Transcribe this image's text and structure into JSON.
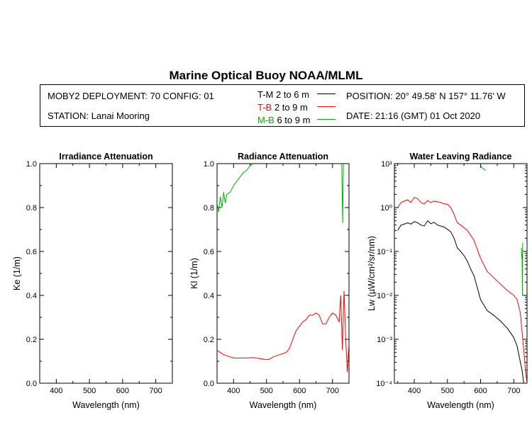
{
  "title": "Marine Optical Buoy NOAA/MLML",
  "info": {
    "deployment": "MOBY2 DEPLOYMENT: 70 CONFIG: 01",
    "station": "STATION: Lanai Mooring",
    "position": "POSITION: 20° 49.58' N   157° 11.76' W",
    "date": "DATE: 21:16 (GMT) 01 Oct 2020"
  },
  "legend": [
    {
      "code": "T-M",
      "range": "2 to 6  m",
      "color": "#000000"
    },
    {
      "code": "T-B",
      "range": "2 to 9  m",
      "color": "#ff0000"
    },
    {
      "code": "M-B",
      "range": "6 to 9  m",
      "color": "#00b000"
    }
  ],
  "chart_data": [
    {
      "type": "line",
      "title": "Irradiance Attenuation",
      "xlabel": "Wavelength (nm)",
      "ylabel": "Ke  (1/m)",
      "xlim": [
        350,
        750
      ],
      "ylim": [
        0,
        1.0
      ],
      "xticks": [
        "400",
        "500",
        "600",
        "700"
      ],
      "yticks": [
        "0.0",
        "0.2",
        "0.4",
        "0.6",
        "0.8",
        "1.0"
      ],
      "series": []
    },
    {
      "type": "line",
      "title": "Radiance Attenuation",
      "xlabel": "Wavelength (nm)",
      "ylabel": "Kl  (1/m)",
      "xlim": [
        350,
        750
      ],
      "ylim": [
        0,
        1.0
      ],
      "xticks": [
        "400",
        "500",
        "600",
        "700"
      ],
      "yticks": [
        "0.0",
        "0.2",
        "0.4",
        "0.6",
        "0.8",
        "1.0"
      ],
      "series": [
        {
          "color": "#ff0000",
          "x": [
            350,
            360,
            370,
            380,
            390,
            400,
            420,
            440,
            460,
            480,
            500,
            510,
            520,
            540,
            560,
            570,
            580,
            590,
            600,
            610,
            620,
            630,
            640,
            650,
            660,
            670,
            680,
            690,
            700,
            710,
            720,
            725,
            730,
            735,
            740,
            745,
            750
          ],
          "y": [
            0.15,
            0.14,
            0.13,
            0.125,
            0.12,
            0.115,
            0.115,
            0.115,
            0.117,
            0.112,
            0.107,
            0.11,
            0.12,
            0.13,
            0.14,
            0.16,
            0.2,
            0.24,
            0.26,
            0.28,
            0.29,
            0.31,
            0.31,
            0.32,
            0.31,
            0.27,
            0.27,
            0.3,
            0.32,
            0.31,
            0.28,
            0.4,
            0.15,
            0.42,
            0.2,
            0.05,
            0.18
          ]
        },
        {
          "color": "#00b000",
          "x": [
            350,
            355,
            360,
            365,
            370,
            375,
            380,
            390,
            400,
            410,
            420,
            430,
            440,
            450,
            460
          ],
          "y": [
            0.82,
            0.78,
            0.85,
            0.8,
            0.87,
            0.82,
            0.86,
            0.87,
            0.9,
            0.92,
            0.94,
            0.96,
            0.97,
            0.99,
            1.0
          ]
        },
        {
          "color": "#00b000",
          "x": [
            728,
            729,
            730,
            731,
            732,
            733,
            735
          ],
          "y": [
            1.0,
            0.9,
            0.8,
            0.73,
            0.9,
            1.0,
            1.0
          ]
        }
      ]
    },
    {
      "type": "line",
      "title": "Water Leaving Radiance",
      "xlabel": "Wavelength (nm)",
      "ylabel": "Lw  (µW/cm²/sr/nm)",
      "log_y": true,
      "xlim": [
        340,
        740
      ],
      "ylim": [
        0.0001,
        10
      ],
      "xticks": [
        "400",
        "500",
        "600",
        "700"
      ],
      "yticks": [
        "10⁻⁴",
        "10⁻³",
        "10⁻²",
        "10⁻¹",
        "10⁰",
        "10¹"
      ],
      "series": [
        {
          "color": "#000000",
          "x": [
            350,
            360,
            370,
            380,
            390,
            400,
            410,
            420,
            430,
            440,
            450,
            460,
            470,
            480,
            490,
            500,
            510,
            520,
            530,
            540,
            550,
            560,
            570,
            580,
            590,
            600,
            610,
            620,
            640,
            660,
            680,
            700,
            710,
            720,
            725,
            730
          ],
          "y": [
            0.3,
            0.4,
            0.42,
            0.45,
            0.42,
            0.48,
            0.45,
            0.4,
            0.38,
            0.5,
            0.43,
            0.46,
            0.4,
            0.38,
            0.36,
            0.32,
            0.28,
            0.2,
            0.12,
            0.1,
            0.08,
            0.06,
            0.04,
            0.028,
            0.015,
            0.008,
            0.006,
            0.0045,
            0.0035,
            0.0026,
            0.0018,
            0.0011,
            0.0007,
            0.0003,
            0.0002,
            0.0001
          ]
        },
        {
          "color": "#ff0000",
          "x": [
            350,
            360,
            370,
            380,
            390,
            400,
            410,
            420,
            430,
            440,
            450,
            460,
            470,
            480,
            490,
            500,
            510,
            520,
            530,
            540,
            560,
            580,
            600,
            620,
            640,
            660,
            680,
            700,
            710,
            720,
            725,
            730,
            735,
            740
          ],
          "y": [
            1.0,
            1.3,
            1.4,
            1.5,
            1.3,
            1.7,
            1.6,
            1.3,
            1.2,
            1.45,
            1.3,
            1.4,
            1.35,
            1.3,
            1.2,
            1.2,
            1.0,
            0.7,
            0.45,
            0.4,
            0.3,
            0.18,
            0.07,
            0.035,
            0.025,
            0.018,
            0.013,
            0.01,
            0.008,
            0.004,
            0.0015,
            0.0006,
            0.0002,
            0.0001
          ]
        },
        {
          "color": "#00b000",
          "x": [
            600,
            605,
            610,
            615
          ],
          "y": [
            9.0,
            8.0,
            7.5,
            7.0
          ]
        },
        {
          "color": "#00b000",
          "x": [
            723,
            724,
            725,
            726,
            727
          ],
          "y": [
            0.12,
            0.07,
            0.09,
            0.01,
            0.16
          ]
        }
      ]
    }
  ]
}
